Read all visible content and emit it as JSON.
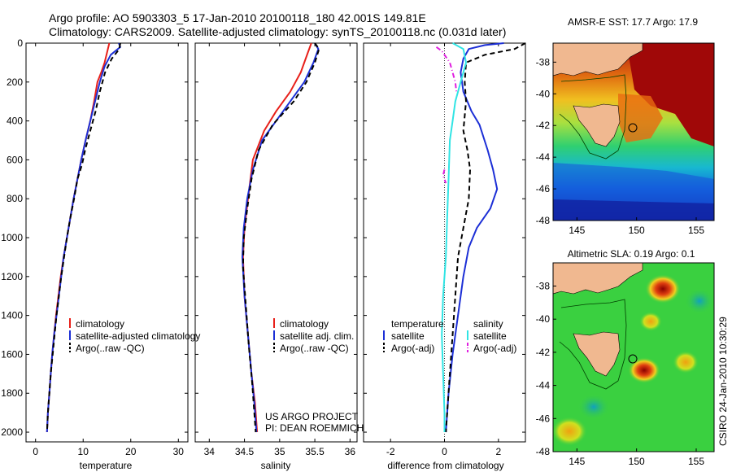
{
  "title_line1": "Argo profile: AO 5903303_5 17-Jan-2010 20100118_180 42.001S 149.81E",
  "title_line2": "Climatology: CARS2009. Satellite-adjusted climatology: synTS_20100118.nc (0.031d later)",
  "footer_credit": "CSIRO 24-Jan-2010 10:30:29",
  "project_line1": "US ARGO PROJECT",
  "project_line2": "PI: DEAN ROEMMICH",
  "colors": {
    "climatology": "#e8201a",
    "satellite": "#1c2fd6",
    "argo": "#000000",
    "satellite_salinity": "#30e4e4",
    "argo_salinity_adj": "#e020e0"
  },
  "chart_data": [
    {
      "type": "line",
      "xlabel": "temperature",
      "xlim": [
        -2,
        32
      ],
      "xticks": [
        "0",
        "10",
        "20",
        "30"
      ],
      "ylim": [
        0,
        2050
      ],
      "yticks": [
        "0",
        "200",
        "400",
        "600",
        "800",
        "1000",
        "1200",
        "1400",
        "1600",
        "1800",
        "2000"
      ],
      "y_reversed": true,
      "legend": [
        "climatology",
        "satellite-adjusted climatology",
        "Argo(..raw -QC)"
      ],
      "series": [
        {
          "name": "climatology",
          "style": "solid",
          "color": "climatology",
          "points": [
            [
              15.5,
              0
            ],
            [
              15.0,
              50
            ],
            [
              14.5,
              100
            ],
            [
              13.8,
              150
            ],
            [
              13.0,
              200
            ],
            [
              12.3,
              300
            ],
            [
              11.5,
              400
            ],
            [
              10.5,
              500
            ],
            [
              9.6,
              600
            ],
            [
              8.8,
              700
            ],
            [
              8.0,
              800
            ],
            [
              7.3,
              900
            ],
            [
              6.6,
              1000
            ],
            [
              5.9,
              1100
            ],
            [
              5.3,
              1200
            ],
            [
              4.8,
              1300
            ],
            [
              4.3,
              1400
            ],
            [
              3.9,
              1500
            ],
            [
              3.5,
              1600
            ],
            [
              3.2,
              1700
            ],
            [
              2.9,
              1800
            ],
            [
              2.6,
              1900
            ],
            [
              2.4,
              2000
            ]
          ]
        },
        {
          "name": "satellite-adjusted climatology",
          "style": "solid",
          "color": "satellite",
          "points": [
            [
              17.5,
              0
            ],
            [
              17.8,
              20
            ],
            [
              15.8,
              60
            ],
            [
              14.5,
              120
            ],
            [
              13.5,
              200
            ],
            [
              12.5,
              300
            ],
            [
              11.5,
              400
            ],
            [
              10.5,
              500
            ],
            [
              9.6,
              600
            ],
            [
              8.8,
              700
            ],
            [
              8.0,
              800
            ],
            [
              7.3,
              900
            ],
            [
              6.6,
              1000
            ],
            [
              5.9,
              1100
            ],
            [
              5.4,
              1200
            ],
            [
              4.9,
              1300
            ],
            [
              4.4,
              1400
            ],
            [
              3.9,
              1500
            ],
            [
              3.5,
              1600
            ],
            [
              3.2,
              1700
            ],
            [
              2.9,
              1800
            ],
            [
              2.6,
              1900
            ],
            [
              2.4,
              2000
            ]
          ]
        },
        {
          "name": "Argo(..raw -QC)",
          "style": "dashed",
          "color": "argo",
          "points": [
            [
              17.8,
              0
            ],
            [
              17.6,
              30
            ],
            [
              16.0,
              80
            ],
            [
              14.6,
              150
            ],
            [
              13.5,
              250
            ],
            [
              12.6,
              350
            ],
            [
              11.5,
              450
            ],
            [
              10.4,
              550
            ],
            [
              9.8,
              620
            ],
            [
              8.8,
              700
            ],
            [
              8.1,
              800
            ],
            [
              7.3,
              900
            ],
            [
              6.6,
              1000
            ],
            [
              6.0,
              1100
            ],
            [
              5.4,
              1200
            ],
            [
              4.9,
              1300
            ],
            [
              4.4,
              1400
            ],
            [
              4.0,
              1500
            ],
            [
              3.6,
              1600
            ],
            [
              3.2,
              1700
            ],
            [
              2.9,
              1800
            ],
            [
              2.6,
              1900
            ],
            [
              2.4,
              2000
            ]
          ]
        }
      ]
    },
    {
      "type": "line",
      "xlabel": "salinity",
      "xlim": [
        33.8,
        36.1
      ],
      "xticks": [
        "34",
        "34.5",
        "35",
        "35.5",
        "36"
      ],
      "ylim": [
        0,
        2050
      ],
      "y_reversed": true,
      "legend": [
        "climatology",
        "satellite adj. clim.",
        "Argo(..raw -QC)"
      ],
      "series": [
        {
          "name": "climatology",
          "style": "solid",
          "color": "climatology",
          "points": [
            [
              35.45,
              0
            ],
            [
              35.4,
              50
            ],
            [
              35.3,
              150
            ],
            [
              35.15,
              250
            ],
            [
              34.95,
              350
            ],
            [
              34.78,
              450
            ],
            [
              34.62,
              600
            ],
            [
              34.55,
              800
            ],
            [
              34.5,
              950
            ],
            [
              34.48,
              1100
            ],
            [
              34.5,
              1300
            ],
            [
              34.55,
              1500
            ],
            [
              34.6,
              1700
            ],
            [
              34.65,
              1850
            ],
            [
              34.68,
              2000
            ]
          ]
        },
        {
          "name": "satellite adj. clim.",
          "style": "solid",
          "color": "satellite",
          "points": [
            [
              35.5,
              0
            ],
            [
              35.55,
              30
            ],
            [
              35.48,
              100
            ],
            [
              35.35,
              200
            ],
            [
              35.15,
              300
            ],
            [
              34.95,
              400
            ],
            [
              34.75,
              500
            ],
            [
              34.62,
              650
            ],
            [
              34.54,
              800
            ],
            [
              34.49,
              950
            ],
            [
              34.47,
              1100
            ],
            [
              34.5,
              1300
            ],
            [
              34.55,
              1500
            ],
            [
              34.6,
              1700
            ],
            [
              34.64,
              1850
            ],
            [
              34.67,
              2000
            ]
          ]
        },
        {
          "name": "Argo(..raw -QC)",
          "style": "dashed",
          "color": "argo",
          "points": [
            [
              35.5,
              0
            ],
            [
              35.56,
              30
            ],
            [
              35.5,
              100
            ],
            [
              35.38,
              200
            ],
            [
              35.2,
              300
            ],
            [
              34.9,
              420
            ],
            [
              34.7,
              550
            ],
            [
              34.6,
              700
            ],
            [
              34.54,
              850
            ],
            [
              34.49,
              1000
            ],
            [
              34.48,
              1150
            ],
            [
              34.52,
              1350
            ],
            [
              34.56,
              1550
            ],
            [
              34.61,
              1750
            ],
            [
              34.66,
              2000
            ]
          ]
        }
      ]
    },
    {
      "type": "line",
      "xlabel": "difference from climatology",
      "xlim": [
        -3,
        3
      ],
      "xticks": [
        "-2",
        "0",
        "2"
      ],
      "ylim": [
        0,
        2050
      ],
      "y_reversed": true,
      "legend_headers": [
        "temperature",
        "salinity"
      ],
      "legend": [
        "satellite",
        "Argo(-adj)",
        "satellite",
        "Argo(-adj)"
      ],
      "series": [
        {
          "name": "temperature satellite",
          "style": "solid",
          "color": "satellite",
          "points": [
            [
              2.2,
              0
            ],
            [
              1.5,
              10
            ],
            [
              0.9,
              30
            ],
            [
              0.7,
              80
            ],
            [
              0.6,
              150
            ],
            [
              0.7,
              250
            ],
            [
              1.0,
              350
            ],
            [
              1.3,
              420
            ],
            [
              1.6,
              550
            ],
            [
              1.8,
              650
            ],
            [
              1.95,
              750
            ],
            [
              1.7,
              850
            ],
            [
              1.2,
              950
            ],
            [
              0.9,
              1050
            ],
            [
              0.7,
              1200
            ],
            [
              0.5,
              1400
            ],
            [
              0.3,
              1600
            ],
            [
              0.15,
              1800
            ],
            [
              0.05,
              2000
            ]
          ]
        },
        {
          "name": "temperature Argo(-adj)",
          "style": "dashed",
          "color": "argo",
          "points": [
            [
              3.0,
              0
            ],
            [
              2.6,
              30
            ],
            [
              1.5,
              60
            ],
            [
              0.8,
              100
            ],
            [
              0.75,
              200
            ],
            [
              0.8,
              300
            ],
            [
              0.7,
              450
            ],
            [
              0.85,
              550
            ],
            [
              0.95,
              650
            ],
            [
              0.9,
              800
            ],
            [
              0.7,
              950
            ],
            [
              0.5,
              1100
            ],
            [
              0.4,
              1300
            ],
            [
              0.3,
              1500
            ],
            [
              0.2,
              1700
            ],
            [
              0.1,
              1900
            ],
            [
              0.05,
              2000
            ]
          ]
        },
        {
          "name": "salinity satellite",
          "style": "solid",
          "color": "satellite_salinity",
          "points": [
            [
              0.3,
              0
            ],
            [
              0.7,
              30
            ],
            [
              0.8,
              100
            ],
            [
              0.6,
              200
            ],
            [
              0.4,
              300
            ],
            [
              0.3,
              400
            ],
            [
              0.2,
              500
            ],
            [
              0.15,
              700
            ],
            [
              0.1,
              900
            ],
            [
              0.05,
              1100
            ],
            [
              -0.05,
              1300
            ],
            [
              -0.1,
              1500
            ],
            [
              -0.05,
              1700
            ],
            [
              0.0,
              1900
            ],
            [
              0.0,
              2000
            ]
          ]
        },
        {
          "name": "salinity Argo(-adj)",
          "style": "dashdot",
          "color": "argo_salinity_adj",
          "points": [
            [
              -0.3,
              20
            ],
            [
              -0.1,
              40
            ],
            [
              0.2,
              100
            ],
            [
              0.4,
              200
            ],
            [
              0.45,
              260
            ]
          ]
        },
        {
          "name": "salinity Argo(-adj) lower",
          "style": "dashdot",
          "color": "argo_salinity_adj",
          "points": [
            [
              0.0,
              650
            ],
            [
              -0.05,
              680
            ],
            [
              0.05,
              720
            ]
          ]
        }
      ]
    }
  ],
  "maps": [
    {
      "title": "AMSR-E SST: 17.7 Argo: 17.9",
      "xticks": [
        "145",
        "150",
        "155"
      ],
      "yticks": [
        "-38",
        "-40",
        "-42",
        "-44",
        "-46",
        "-48"
      ]
    },
    {
      "title": "Altimetric SLA: 0.19 Argo: 0.1",
      "xticks": [
        "145",
        "150",
        "155"
      ],
      "yticks": [
        "-38",
        "-40",
        "-42",
        "-44",
        "-46",
        "-48"
      ]
    }
  ]
}
